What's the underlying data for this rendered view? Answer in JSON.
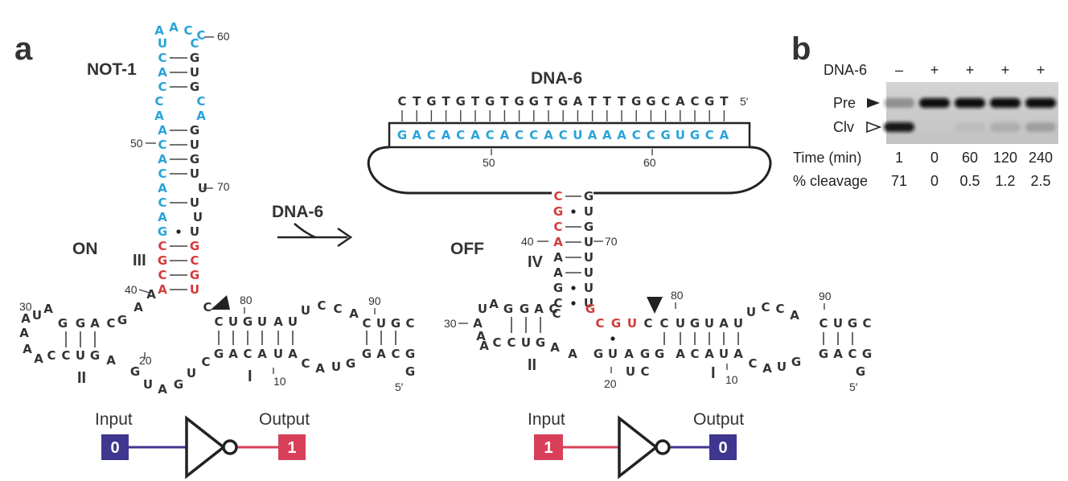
{
  "panels": {
    "a": "a",
    "b": "b"
  },
  "left": {
    "title": "NOT-1",
    "state": "ON",
    "stems": {
      "III": "III",
      "II": "II",
      "I": "I"
    },
    "numbers": {
      "n60": "60",
      "n50": "50",
      "n70": "70",
      "n40": "40",
      "n30": "30",
      "n80": "80",
      "n90": "90",
      "n20": "20",
      "n10": "10",
      "p5": "5′"
    },
    "gate": {
      "input_label": "Input",
      "output_label": "Output",
      "input_value": "0",
      "output_value": "1"
    }
  },
  "arrow": {
    "label": "DNA-6"
  },
  "right": {
    "dna_title": "DNA-6",
    "dna_seq": "CTGTGTGTGGTGATTTGGCACGT",
    "dna_end": "5′",
    "rna_seq": "GACACACACCACUAAACCGUGCA",
    "ruler": {
      "r50": "50",
      "r60": "60"
    },
    "state": "OFF",
    "stems": {
      "IV": "IV",
      "II": "II",
      "I": "I"
    },
    "numbers": {
      "n40": "40",
      "n70": "70",
      "n30": "30",
      "n80": "80",
      "n90": "90",
      "n20": "20",
      "n10": "10",
      "p5": "5′"
    },
    "gate": {
      "input_label": "Input",
      "output_label": "Output",
      "input_value": "1",
      "output_value": "0"
    }
  },
  "gel": {
    "header": "DNA-6",
    "lanes": [
      "–",
      "+",
      "+",
      "+",
      "+"
    ],
    "bands": {
      "pre": "Pre",
      "clv": "Clv"
    },
    "time_label": "Time (min)",
    "times": [
      "1",
      "0",
      "60",
      "120",
      "240"
    ],
    "cleavage_label": "% cleavage",
    "cleavage": [
      "71",
      "0",
      "0.5",
      "1.2",
      "2.5"
    ],
    "pre_intensity": [
      0.3,
      1,
      1,
      1,
      1
    ],
    "clv_intensity": [
      0.95,
      0,
      0.05,
      0.12,
      0.2
    ]
  },
  "colors": {
    "black": "#333333",
    "blue": "#29a3d8",
    "red": "#d43a3a",
    "input_zero": "#3f3690",
    "input_one": "#d8405a"
  }
}
